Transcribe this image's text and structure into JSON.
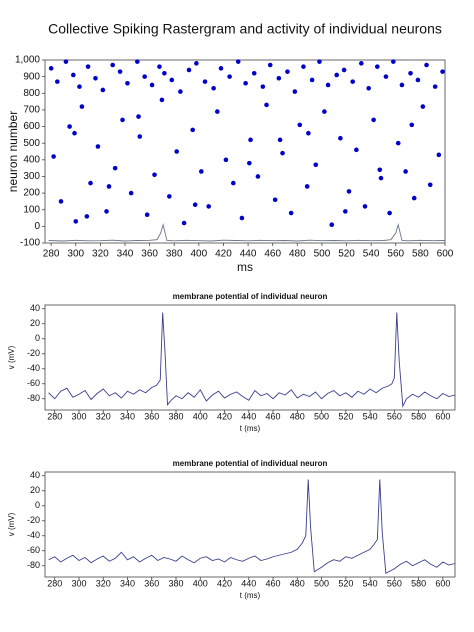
{
  "chart_data": [
    {
      "type": "scatter",
      "title": "Collective Spiking Rastergram and activity  of individual neurons",
      "x_label": "ms",
      "y_label": "neuron number",
      "xlim": [
        275,
        600
      ],
      "xticks": [
        280,
        300,
        320,
        340,
        360,
        380,
        400,
        420,
        440,
        460,
        480,
        500,
        520,
        540,
        560,
        580,
        600
      ],
      "ylim": [
        -100,
        1000
      ],
      "yticks": [
        -100,
        0,
        100,
        200,
        300,
        400,
        500,
        600,
        700,
        800,
        900,
        {
          "value": 1000,
          "label": "1,000"
        }
      ],
      "series": [
        {
          "type": "scatter",
          "color": "#0000c8",
          "x": [
            280,
            285,
            292,
            298,
            303,
            310,
            316,
            322,
            330,
            336,
            342,
            350,
            356,
            362,
            368,
            372,
            378,
            385,
            392,
            398,
            405,
            412,
            418,
            425,
            432,
            438,
            445,
            452,
            458,
            465,
            472,
            478,
            485,
            492,
            498,
            505,
            512,
            518,
            525,
            532,
            538,
            545,
            552,
            558,
            565,
            572,
            578,
            585,
            592,
            598,
            282,
            288,
            295,
            300,
            305,
            312,
            318,
            325,
            332,
            338,
            345,
            352,
            358,
            364,
            370,
            376,
            382,
            388,
            395,
            402,
            408,
            415,
            422,
            428,
            435,
            442,
            448,
            455,
            462,
            468,
            475,
            482,
            488,
            495,
            502,
            508,
            515,
            522,
            528,
            535,
            542,
            548,
            555,
            562,
            568,
            575,
            582,
            588,
            595,
            299,
            327,
            351,
            397,
            441,
            489,
            519,
            547,
            573,
            309,
            466
          ],
          "values": [
            950,
            870,
            990,
            910,
            840,
            960,
            890,
            820,
            970,
            930,
            860,
            990,
            900,
            850,
            960,
            920,
            880,
            810,
            940,
            980,
            870,
            830,
            950,
            900,
            990,
            860,
            920,
            840,
            970,
            890,
            930,
            810,
            960,
            880,
            990,
            850,
            910,
            940,
            870,
            980,
            830,
            960,
            900,
            990,
            850,
            920,
            880,
            970,
            840,
            930,
            420,
            150,
            600,
            30,
            720,
            260,
            480,
            90,
            350,
            640,
            200,
            540,
            70,
            310,
            760,
            180,
            450,
            20,
            580,
            330,
            120,
            690,
            400,
            260,
            50,
            520,
            300,
            730,
            160,
            440,
            80,
            610,
            240,
            370,
            690,
            10,
            530,
            210,
            460,
            120,
            640,
            290,
            80,
            500,
            330,
            170,
            720,
            250,
            430,
            560,
            240,
            660,
            130,
            380,
            560,
            90,
            340,
            610,
            60,
            520
          ]
        },
        {
          "type": "line",
          "color": "#6a7388",
          "x": [
            278,
            290,
            300,
            310,
            320,
            330,
            340,
            350,
            360,
            366,
            369,
            371,
            374,
            380,
            390,
            400,
            410,
            420,
            430,
            440,
            450,
            460,
            470,
            480,
            490,
            500,
            510,
            520,
            530,
            540,
            550,
            556,
            560,
            562,
            565,
            570,
            580,
            590,
            600
          ],
          "values": [
            -85,
            -88,
            -84,
            -87,
            -86,
            -83,
            -88,
            -85,
            -84,
            -80,
            -40,
            10,
            -85,
            -87,
            -84,
            -86,
            -88,
            -83,
            -85,
            -87,
            -84,
            -86,
            -85,
            -88,
            -83,
            -86,
            -85,
            -87,
            -84,
            -86,
            -85,
            -80,
            -40,
            10,
            -85,
            -87,
            -84,
            -86,
            -85
          ]
        }
      ]
    },
    {
      "type": "line",
      "title": "membrane potential of individual neuron",
      "x_label": "t (ms)",
      "y_label": "v  (mV)",
      "xlim": [
        272,
        610
      ],
      "xticks": [
        280,
        300,
        320,
        340,
        360,
        380,
        400,
        420,
        440,
        460,
        480,
        500,
        520,
        540,
        560,
        580,
        600
      ],
      "ylim": [
        -95,
        45
      ],
      "yticks": [
        -80,
        -60,
        -40,
        -20,
        0,
        20,
        40
      ],
      "series": [
        {
          "type": "line",
          "color": "#3a3f8c",
          "x": [
            275,
            280,
            285,
            290,
            295,
            300,
            305,
            310,
            315,
            320,
            325,
            330,
            335,
            340,
            345,
            350,
            355,
            360,
            364,
            367,
            369,
            371,
            373,
            376,
            380,
            385,
            390,
            395,
            400,
            405,
            410,
            415,
            420,
            425,
            430,
            435,
            440,
            445,
            450,
            455,
            460,
            465,
            470,
            475,
            480,
            485,
            490,
            495,
            500,
            505,
            510,
            515,
            520,
            525,
            530,
            535,
            540,
            545,
            550,
            555,
            558,
            560,
            562,
            564,
            567,
            570,
            575,
            580,
            585,
            590,
            595,
            600,
            605,
            610
          ],
          "values": [
            -72,
            -80,
            -70,
            -66,
            -78,
            -74,
            -69,
            -81,
            -73,
            -67,
            -76,
            -72,
            -79,
            -70,
            -74,
            -68,
            -72,
            -65,
            -62,
            -55,
            35,
            -20,
            -88,
            -82,
            -76,
            -80,
            -72,
            -78,
            -68,
            -83,
            -75,
            -70,
            -79,
            -74,
            -71,
            -77,
            -82,
            -69,
            -76,
            -73,
            -80,
            -72,
            -75,
            -68,
            -79,
            -74,
            -77,
            -71,
            -80,
            -73,
            -69,
            -76,
            -72,
            -78,
            -70,
            -74,
            -67,
            -72,
            -66,
            -63,
            -60,
            -52,
            35,
            -30,
            -90,
            -80,
            -74,
            -78,
            -71,
            -76,
            -80,
            -73,
            -77,
            -75
          ]
        }
      ]
    },
    {
      "type": "line",
      "title": "membrane potential of individual neuron",
      "x_label": "t (ms)",
      "y_label": "v  (mV)",
      "xlim": [
        272,
        610
      ],
      "xticks": [
        280,
        300,
        320,
        340,
        360,
        380,
        400,
        420,
        440,
        460,
        480,
        500,
        520,
        540,
        560,
        580,
        600
      ],
      "ylim": [
        -95,
        45
      ],
      "yticks": [
        -80,
        -60,
        -40,
        -20,
        0,
        20,
        40
      ],
      "series": [
        {
          "type": "line",
          "color": "#3a3f8c",
          "x": [
            275,
            280,
            285,
            290,
            295,
            300,
            305,
            310,
            315,
            320,
            325,
            330,
            335,
            340,
            345,
            350,
            355,
            360,
            365,
            370,
            375,
            380,
            385,
            390,
            395,
            400,
            405,
            410,
            415,
            420,
            425,
            430,
            435,
            440,
            445,
            450,
            455,
            460,
            465,
            470,
            475,
            480,
            484,
            487,
            489,
            491,
            494,
            500,
            505,
            510,
            515,
            520,
            525,
            530,
            535,
            540,
            543,
            546,
            548,
            550,
            553,
            560,
            565,
            570,
            575,
            580,
            585,
            590,
            595,
            600,
            605,
            610
          ],
          "values": [
            -72,
            -68,
            -75,
            -70,
            -66,
            -73,
            -69,
            -76,
            -71,
            -67,
            -74,
            -70,
            -62,
            -72,
            -68,
            -75,
            -70,
            -66,
            -73,
            -69,
            -71,
            -74,
            -67,
            -72,
            -76,
            -70,
            -68,
            -73,
            -71,
            -75,
            -69,
            -72,
            -74,
            -70,
            -67,
            -73,
            -71,
            -68,
            -66,
            -64,
            -62,
            -58,
            -50,
            -40,
            35,
            -30,
            -88,
            -82,
            -76,
            -72,
            -74,
            -68,
            -70,
            -66,
            -62,
            -58,
            -52,
            -45,
            35,
            -35,
            -90,
            -84,
            -78,
            -74,
            -80,
            -76,
            -72,
            -78,
            -82,
            -75,
            -79,
            -77
          ]
        }
      ]
    }
  ]
}
